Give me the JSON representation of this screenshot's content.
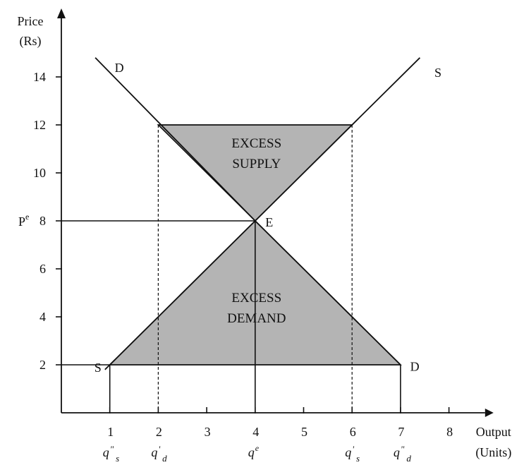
{
  "chart_data": {
    "type": "line",
    "xlabel": [
      "Output",
      "(Units)"
    ],
    "ylabel": [
      "Price",
      "(Rs)"
    ],
    "xlim": [
      0,
      8.6
    ],
    "ylim": [
      0,
      15
    ],
    "x_ticks": [
      "1",
      "2",
      "3",
      "4",
      "5",
      "6",
      "7",
      "8"
    ],
    "y_ticks": [
      "2",
      "4",
      "6",
      "8",
      "10",
      "12",
      "14"
    ],
    "series": [
      {
        "name": "D",
        "x": [
          0.7,
          4,
          7
        ],
        "y": [
          14.8,
          8,
          2
        ]
      },
      {
        "name": "S",
        "x": [
          0.9,
          4,
          7.4
        ],
        "y": [
          1.8,
          8,
          14.8
        ]
      }
    ],
    "equilibrium": {
      "label": "E",
      "price_label": "P",
      "price_sup": "e",
      "x": 4,
      "y": 8
    },
    "price_lines": [
      {
        "y": 12,
        "x_from": 2,
        "x_to": 6
      },
      {
        "y": 2,
        "x_from": 1,
        "x_to": 7
      }
    ],
    "regions": [
      {
        "label": [
          "EXCESS",
          "SUPPLY"
        ],
        "vertices": [
          [
            2,
            12
          ],
          [
            6,
            12
          ],
          [
            4,
            8
          ]
        ]
      },
      {
        "label": [
          "EXCESS",
          "DEMAND"
        ],
        "vertices": [
          [
            1,
            2
          ],
          [
            7,
            2
          ],
          [
            4,
            8
          ]
        ]
      }
    ],
    "quantity_labels": [
      {
        "x": 1,
        "base": "q",
        "prime": "\"",
        "sub": "s"
      },
      {
        "x": 2,
        "base": "q",
        "prime": "'",
        "sub": "d"
      },
      {
        "x": 4,
        "base": "q",
        "prime": "",
        "sub": "",
        "sup": "e"
      },
      {
        "x": 6,
        "base": "q",
        "prime": "'",
        "sub": "s"
      },
      {
        "x": 7,
        "base": "q",
        "prime": "\"",
        "sub": "d"
      }
    ],
    "line_labels": [
      {
        "text": "D",
        "x": 1.1,
        "y": 14.2
      },
      {
        "text": "S",
        "x": 7.7,
        "y": 14.0
      },
      {
        "text": "S",
        "x": 0.68,
        "y": 1.7
      },
      {
        "text": "D",
        "x": 7.2,
        "y": 1.75
      }
    ]
  }
}
